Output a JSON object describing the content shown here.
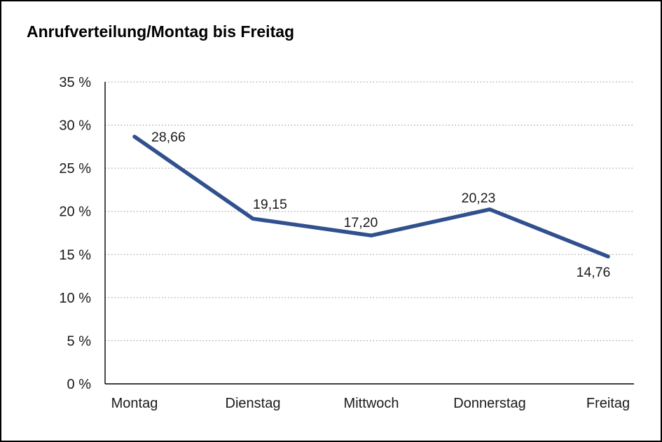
{
  "page": {
    "title": "Anrufverteilung/Montag bis Freitag"
  },
  "chart_data": {
    "type": "line",
    "title": "Anrufverteilung/Montag bis Freitag",
    "categories": [
      "Montag",
      "Dienstag",
      "Mittwoch",
      "Donnerstag",
      "Freitag"
    ],
    "values": [
      28.66,
      19.15,
      17.2,
      20.23,
      14.76
    ],
    "value_labels": [
      "28,66",
      "19,15",
      "17,20",
      "20,23",
      "14,76"
    ],
    "xlabel": "",
    "ylabel": "",
    "ylim": [
      0,
      35
    ],
    "ytick_step": 5,
    "ytick_labels": [
      "0 %",
      "5 %",
      "10 %",
      "15 %",
      "20 %",
      "25 %",
      "30 %",
      "35 %"
    ],
    "grid": "horizontal-dotted",
    "legend": "none",
    "line_color": "#31508e",
    "grid_color": "#8f8f8f",
    "axis_color": "#000000",
    "label_offsets": [
      [
        24,
        7,
        "start"
      ],
      [
        0,
        -14,
        "start"
      ],
      [
        -15,
        -12,
        "middle"
      ],
      [
        -16,
        -10,
        "middle"
      ],
      [
        -21,
        29,
        "middle"
      ]
    ]
  }
}
